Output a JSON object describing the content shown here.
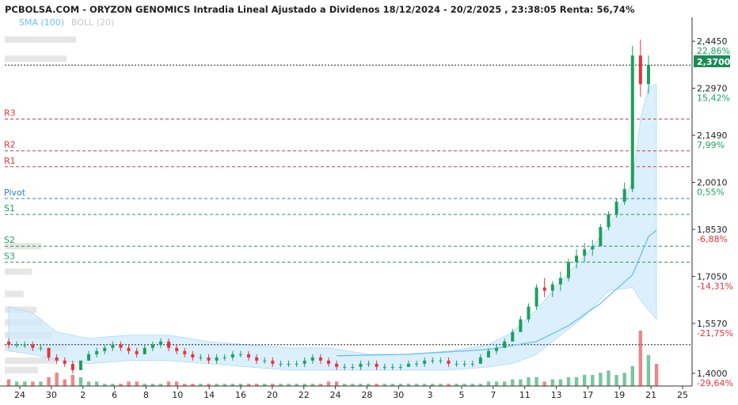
{
  "title": "PCBOLSA.COM - ORYZON GENOMICS Intradia Lineal Ajustado a Dividenos 18/12/2024 - 20/2/2025 , 23:38:05 Renta: 56,74%",
  "legend": {
    "sma": "SMA (100)",
    "boll": "BOLL (20)"
  },
  "colors": {
    "up": "#1e9e5e",
    "down": "#e0353b",
    "sma": "#6ec1ef",
    "boll_fill": "#cfe9fb",
    "resistance": "#e0353b",
    "support": "#1e9e5e",
    "pivot": "#2a7fd0",
    "badge": "#1e8a5a"
  },
  "current_price": "2,3700",
  "chart_data": {
    "type": "candlestick",
    "ylim": [
      1.36,
      2.52
    ],
    "y_ticks": [
      {
        "value": 2.445,
        "label": "2,4450",
        "pct": "22,86%",
        "dir": "pos"
      },
      {
        "value": 2.297,
        "label": "2,2970",
        "pct": "15,42%",
        "dir": "pos"
      },
      {
        "value": 2.149,
        "label": "2,1490",
        "pct": "7,99%",
        "dir": "pos"
      },
      {
        "value": 2.001,
        "label": "2,0010",
        "pct": "0,55%",
        "dir": "pos"
      },
      {
        "value": 1.853,
        "label": "1,8530",
        "pct": "-6,88%",
        "dir": "neg"
      },
      {
        "value": 1.705,
        "label": "1,7050",
        "pct": "-14,31%",
        "dir": "neg"
      },
      {
        "value": 1.557,
        "label": "1,5570",
        "pct": "-21,75%",
        "dir": "neg"
      },
      {
        "value": 1.4,
        "label": "1,4000",
        "pct": "-29,64%",
        "dir": "neg"
      }
    ],
    "x_ticks": [
      "24",
      "30",
      "2",
      "6",
      "8",
      "10",
      "14",
      "16",
      "20",
      "22",
      "24",
      "28",
      "30",
      "3",
      "5",
      "7",
      "11",
      "13",
      "17",
      "19",
      "21",
      "25"
    ],
    "levels": [
      {
        "name": "R3",
        "value": 2.2,
        "kind": "r"
      },
      {
        "name": "R2",
        "value": 2.1,
        "kind": "r"
      },
      {
        "name": "R1",
        "value": 2.05,
        "kind": "r"
      },
      {
        "name": "Pivot",
        "value": 1.95,
        "kind": "p"
      },
      {
        "name": "S1",
        "value": 1.9,
        "kind": "s"
      },
      {
        "name": "S2",
        "value": 1.8,
        "kind": "s"
      },
      {
        "name": "S3",
        "value": 1.75,
        "kind": "s"
      }
    ],
    "reference_lines": [
      2.37,
      1.49
    ],
    "candles": [
      [
        1.5,
        1.51,
        1.48,
        1.49
      ],
      [
        1.49,
        1.5,
        1.48,
        1.49
      ],
      [
        1.49,
        1.5,
        1.48,
        1.49
      ],
      [
        1.49,
        1.5,
        1.47,
        1.48
      ],
      [
        1.48,
        1.49,
        1.47,
        1.48
      ],
      [
        1.48,
        1.48,
        1.44,
        1.45
      ],
      [
        1.45,
        1.46,
        1.43,
        1.44
      ],
      [
        1.44,
        1.45,
        1.42,
        1.43
      ],
      [
        1.43,
        1.44,
        1.4,
        1.41
      ],
      [
        1.41,
        1.44,
        1.41,
        1.44
      ],
      [
        1.44,
        1.47,
        1.44,
        1.46
      ],
      [
        1.46,
        1.48,
        1.45,
        1.47
      ],
      [
        1.47,
        1.49,
        1.46,
        1.48
      ],
      [
        1.48,
        1.5,
        1.47,
        1.49
      ],
      [
        1.49,
        1.5,
        1.47,
        1.48
      ],
      [
        1.48,
        1.49,
        1.46,
        1.47
      ],
      [
        1.47,
        1.48,
        1.45,
        1.46
      ],
      [
        1.46,
        1.49,
        1.46,
        1.48
      ],
      [
        1.48,
        1.5,
        1.47,
        1.49
      ],
      [
        1.49,
        1.51,
        1.48,
        1.5
      ],
      [
        1.5,
        1.51,
        1.47,
        1.48
      ],
      [
        1.48,
        1.49,
        1.46,
        1.47
      ],
      [
        1.47,
        1.48,
        1.45,
        1.46
      ],
      [
        1.46,
        1.47,
        1.44,
        1.45
      ],
      [
        1.45,
        1.46,
        1.44,
        1.45
      ],
      [
        1.45,
        1.46,
        1.43,
        1.44
      ],
      [
        1.44,
        1.46,
        1.43,
        1.45
      ],
      [
        1.45,
        1.46,
        1.44,
        1.45
      ],
      [
        1.45,
        1.47,
        1.44,
        1.46
      ],
      [
        1.46,
        1.47,
        1.45,
        1.46
      ],
      [
        1.46,
        1.47,
        1.44,
        1.45
      ],
      [
        1.45,
        1.46,
        1.43,
        1.44
      ],
      [
        1.44,
        1.45,
        1.43,
        1.44
      ],
      [
        1.44,
        1.45,
        1.42,
        1.43
      ],
      [
        1.43,
        1.44,
        1.42,
        1.43
      ],
      [
        1.43,
        1.44,
        1.42,
        1.43
      ],
      [
        1.43,
        1.44,
        1.42,
        1.43
      ],
      [
        1.43,
        1.45,
        1.42,
        1.44
      ],
      [
        1.44,
        1.46,
        1.43,
        1.45
      ],
      [
        1.45,
        1.46,
        1.43,
        1.44
      ],
      [
        1.44,
        1.45,
        1.42,
        1.43
      ],
      [
        1.43,
        1.44,
        1.41,
        1.42
      ],
      [
        1.42,
        1.43,
        1.41,
        1.42
      ],
      [
        1.42,
        1.43,
        1.41,
        1.42
      ],
      [
        1.42,
        1.44,
        1.41,
        1.43
      ],
      [
        1.43,
        1.44,
        1.42,
        1.43
      ],
      [
        1.43,
        1.44,
        1.41,
        1.42
      ],
      [
        1.42,
        1.43,
        1.41,
        1.42
      ],
      [
        1.42,
        1.43,
        1.41,
        1.42
      ],
      [
        1.42,
        1.43,
        1.41,
        1.42
      ],
      [
        1.42,
        1.44,
        1.42,
        1.43
      ],
      [
        1.43,
        1.44,
        1.42,
        1.43
      ],
      [
        1.43,
        1.45,
        1.42,
        1.44
      ],
      [
        1.44,
        1.45,
        1.43,
        1.44
      ],
      [
        1.44,
        1.45,
        1.43,
        1.44
      ],
      [
        1.44,
        1.45,
        1.42,
        1.43
      ],
      [
        1.43,
        1.44,
        1.42,
        1.43
      ],
      [
        1.43,
        1.44,
        1.42,
        1.43
      ],
      [
        1.43,
        1.44,
        1.42,
        1.43
      ],
      [
        1.43,
        1.46,
        1.43,
        1.45
      ],
      [
        1.45,
        1.48,
        1.45,
        1.47
      ],
      [
        1.47,
        1.49,
        1.46,
        1.48
      ],
      [
        1.48,
        1.51,
        1.48,
        1.5
      ],
      [
        1.5,
        1.54,
        1.5,
        1.53
      ],
      [
        1.53,
        1.58,
        1.53,
        1.57
      ],
      [
        1.57,
        1.62,
        1.56,
        1.61
      ],
      [
        1.61,
        1.68,
        1.6,
        1.67
      ],
      [
        1.67,
        1.7,
        1.64,
        1.66
      ],
      [
        1.66,
        1.69,
        1.64,
        1.68
      ],
      [
        1.68,
        1.72,
        1.66,
        1.7
      ],
      [
        1.7,
        1.76,
        1.69,
        1.75
      ],
      [
        1.75,
        1.79,
        1.73,
        1.77
      ],
      [
        1.77,
        1.81,
        1.75,
        1.79
      ],
      [
        1.79,
        1.82,
        1.77,
        1.8
      ],
      [
        1.8,
        1.87,
        1.8,
        1.86
      ],
      [
        1.86,
        1.91,
        1.85,
        1.9
      ],
      [
        1.9,
        1.95,
        1.89,
        1.94
      ],
      [
        1.94,
        2.0,
        1.93,
        1.98
      ],
      [
        1.98,
        2.43,
        1.97,
        2.4
      ],
      [
        2.4,
        2.45,
        2.27,
        2.31
      ],
      [
        2.31,
        2.4,
        2.28,
        2.37
      ]
    ],
    "volumes": [
      3,
      2,
      2,
      2,
      2,
      4,
      6,
      3,
      5,
      4,
      2,
      2,
      1,
      1,
      1,
      2,
      2,
      1,
      1,
      1,
      2,
      2,
      1,
      1,
      1,
      1,
      1,
      1,
      1,
      1,
      1,
      1,
      1,
      1,
      1,
      1,
      1,
      1,
      1,
      1,
      2,
      2,
      1,
      1,
      1,
      1,
      1,
      1,
      1,
      1,
      1,
      1,
      1,
      1,
      1,
      1,
      1,
      1,
      1,
      1,
      2,
      2,
      2,
      3,
      3,
      4,
      4,
      2,
      3,
      3,
      4,
      4,
      5,
      5,
      6,
      7,
      5,
      6,
      9,
      25,
      14,
      10
    ],
    "sma_points": [
      [
        41,
        1.455
      ],
      [
        50,
        1.46
      ],
      [
        60,
        1.475
      ],
      [
        66,
        1.5
      ],
      [
        70,
        1.55
      ],
      [
        74,
        1.62
      ],
      [
        78,
        1.71
      ],
      [
        80,
        1.83
      ],
      [
        81,
        1.85
      ]
    ],
    "boll_upper": [
      [
        0,
        1.61
      ],
      [
        3,
        1.59
      ],
      [
        6,
        1.53
      ],
      [
        10,
        1.51
      ],
      [
        15,
        1.52
      ],
      [
        20,
        1.52
      ],
      [
        25,
        1.5
      ],
      [
        30,
        1.49
      ],
      [
        35,
        1.48
      ],
      [
        40,
        1.48
      ],
      [
        45,
        1.46
      ],
      [
        50,
        1.46
      ],
      [
        55,
        1.47
      ],
      [
        60,
        1.49
      ],
      [
        63,
        1.53
      ],
      [
        66,
        1.6
      ],
      [
        69,
        1.69
      ],
      [
        72,
        1.77
      ],
      [
        75,
        1.86
      ],
      [
        78,
        2.0
      ],
      [
        79,
        2.2
      ],
      [
        80,
        2.3
      ],
      [
        81,
        2.31
      ]
    ],
    "boll_lower": [
      [
        0,
        1.47
      ],
      [
        3,
        1.46
      ],
      [
        6,
        1.44
      ],
      [
        10,
        1.43
      ],
      [
        15,
        1.44
      ],
      [
        20,
        1.44
      ],
      [
        25,
        1.43
      ],
      [
        30,
        1.42
      ],
      [
        35,
        1.41
      ],
      [
        40,
        1.41
      ],
      [
        45,
        1.41
      ],
      [
        50,
        1.41
      ],
      [
        55,
        1.41
      ],
      [
        60,
        1.42
      ],
      [
        63,
        1.43
      ],
      [
        66,
        1.46
      ],
      [
        69,
        1.52
      ],
      [
        72,
        1.58
      ],
      [
        75,
        1.66
      ],
      [
        78,
        1.67
      ],
      [
        79,
        1.63
      ],
      [
        80,
        1.6
      ],
      [
        81,
        1.57
      ]
    ],
    "volume_profile": [
      {
        "y": 2.45,
        "w": 90
      },
      {
        "y": 2.39,
        "w": 78
      },
      {
        "y": 1.8,
        "w": 46
      },
      {
        "y": 1.72,
        "w": 34
      },
      {
        "y": 1.65,
        "w": 24
      },
      {
        "y": 1.6,
        "w": 40
      },
      {
        "y": 1.56,
        "w": 48
      },
      {
        "y": 1.52,
        "w": 60
      },
      {
        "y": 1.48,
        "w": 78
      },
      {
        "y": 1.44,
        "w": 64
      },
      {
        "y": 1.41,
        "w": 42
      }
    ]
  }
}
